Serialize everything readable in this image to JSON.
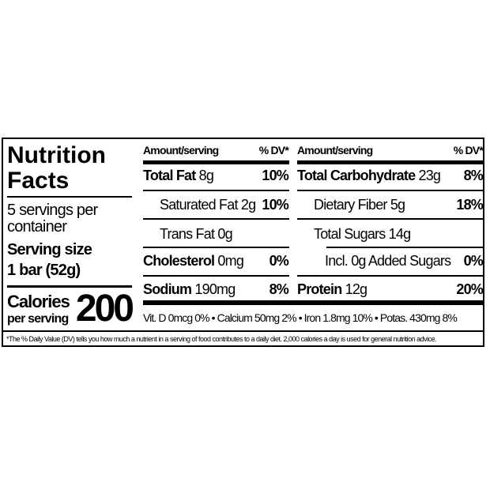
{
  "title_line1": "Nutrition",
  "title_line2": "Facts",
  "servings_line1": "5 servings per",
  "servings_line2": "container",
  "serving_size_label": "Serving size",
  "serving_size_value": "1 bar (52g)",
  "calories_label": "Calories",
  "calories_sub": "per serving",
  "calories_value": "200",
  "col_header_amount": "Amount/serving",
  "col_header_dv": "% DV*",
  "left_nutrients": [
    {
      "name": "Total Fat",
      "amount": "8g",
      "dv": "10%"
    },
    {
      "name": "Saturated Fat",
      "amount": "2g",
      "dv": "10%"
    },
    {
      "name": "Trans Fat",
      "amount": "0g",
      "dv": ""
    },
    {
      "name": "Cholesterol",
      "amount": "0mg",
      "dv": "0%"
    },
    {
      "name": "Sodium",
      "amount": "190mg",
      "dv": "8%"
    }
  ],
  "right_nutrients": [
    {
      "name": "Total Carbohydrate",
      "amount": "23g",
      "dv": "8%"
    },
    {
      "name": "Dietary Fiber",
      "amount": "5g",
      "dv": "18%"
    },
    {
      "name": "Total Sugars",
      "amount": "14g",
      "dv": ""
    },
    {
      "name": "Incl. 0g Added Sugars",
      "amount": "",
      "dv": "0%"
    },
    {
      "name": "Protein",
      "amount": "12g",
      "dv": "20%"
    }
  ],
  "vitamins": "Vit. D 0mcg 0% • Calcium 50mg 2% • Iron 1.8mg 10% • Potas. 430mg 8%",
  "footnote": "*The % Daily Value (DV) tells you how much a nutrient in a serving of food contributes to a daily diet. 2,000 calories a day is used for general nutrition advice."
}
